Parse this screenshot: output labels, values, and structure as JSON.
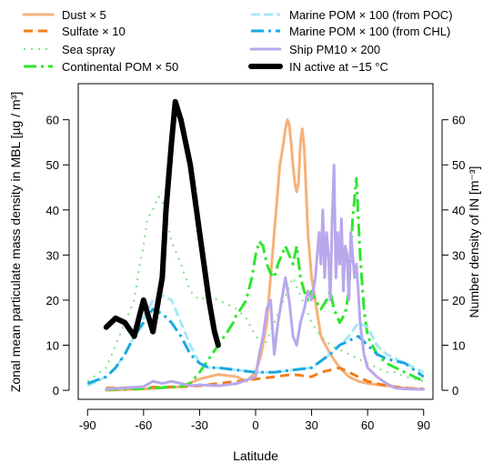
{
  "chart_data": {
    "type": "line",
    "xlabel": "Latitude",
    "ylabel_left": "Zonal mean particulate mass density in MBL [µg / m³]",
    "ylabel_right": "Number density of IN [m⁻³]",
    "xlim": [
      -95,
      95
    ],
    "ylim": [
      -2,
      68
    ],
    "x_ticks": [
      -90,
      -60,
      -30,
      0,
      30,
      60,
      90
    ],
    "y_ticks_left": [
      0,
      10,
      20,
      30,
      40,
      50,
      60
    ],
    "y_ticks_right": [
      0,
      10,
      20,
      30,
      40,
      50,
      60
    ],
    "legend_position": "top",
    "series": [
      {
        "name": "Dust × 5",
        "color": "#f5b27a",
        "dash": "solid",
        "width": 3,
        "points": [
          [
            -80,
            0
          ],
          [
            -60,
            0.3
          ],
          [
            -40,
            0.8
          ],
          [
            -30,
            2.5
          ],
          [
            -20,
            3.5
          ],
          [
            -10,
            3
          ],
          [
            -5,
            2
          ],
          [
            0,
            4
          ],
          [
            3,
            8
          ],
          [
            6,
            15
          ],
          [
            9,
            30
          ],
          [
            11,
            40
          ],
          [
            13,
            50
          ],
          [
            15,
            55
          ],
          [
            16,
            58
          ],
          [
            17,
            60
          ],
          [
            18,
            59
          ],
          [
            19,
            55
          ],
          [
            20,
            50
          ],
          [
            21,
            46
          ],
          [
            22,
            44
          ],
          [
            23,
            46
          ],
          [
            24,
            55
          ],
          [
            25,
            58
          ],
          [
            26,
            54
          ],
          [
            27,
            45
          ],
          [
            28,
            35
          ],
          [
            30,
            25
          ],
          [
            35,
            12
          ],
          [
            40,
            8
          ],
          [
            45,
            5
          ],
          [
            50,
            3
          ],
          [
            55,
            2
          ],
          [
            60,
            1.5
          ],
          [
            70,
            1
          ],
          [
            80,
            0.5
          ],
          [
            90,
            0.2
          ]
        ]
      },
      {
        "name": "Sulfate × 10",
        "color": "#f07c1a",
        "dash": "10,6",
        "width": 3,
        "points": [
          [
            -80,
            0.5
          ],
          [
            -60,
            0.6
          ],
          [
            -40,
            0.8
          ],
          [
            -30,
            1
          ],
          [
            -20,
            1.5
          ],
          [
            -10,
            2
          ],
          [
            0,
            2.5
          ],
          [
            10,
            3
          ],
          [
            20,
            3.5
          ],
          [
            30,
            3
          ],
          [
            35,
            4
          ],
          [
            40,
            4.5
          ],
          [
            45,
            5
          ],
          [
            50,
            4
          ],
          [
            55,
            3
          ],
          [
            60,
            2
          ],
          [
            70,
            1
          ],
          [
            80,
            0.5
          ],
          [
            90,
            0.3
          ]
        ]
      },
      {
        "name": "Sea spray",
        "color": "#7fe07f",
        "dash": "2,6",
        "width": 2,
        "points": [
          [
            -90,
            2
          ],
          [
            -80,
            5
          ],
          [
            -75,
            10
          ],
          [
            -70,
            15
          ],
          [
            -65,
            20
          ],
          [
            -62,
            28
          ],
          [
            -60,
            32
          ],
          [
            -58,
            38
          ],
          [
            -55,
            40
          ],
          [
            -52,
            43
          ],
          [
            -50,
            42
          ],
          [
            -48,
            38
          ],
          [
            -45,
            33
          ],
          [
            -40,
            28
          ],
          [
            -35,
            22
          ],
          [
            -30,
            20
          ],
          [
            -25,
            21
          ],
          [
            -20,
            20
          ],
          [
            -15,
            19
          ],
          [
            -10,
            18
          ],
          [
            -5,
            16
          ],
          [
            0,
            12
          ],
          [
            5,
            10
          ],
          [
            10,
            15
          ],
          [
            15,
            20
          ],
          [
            20,
            25
          ],
          [
            25,
            20
          ],
          [
            30,
            15
          ],
          [
            35,
            12
          ],
          [
            40,
            10
          ],
          [
            45,
            9
          ],
          [
            50,
            8
          ],
          [
            55,
            7
          ],
          [
            60,
            6
          ],
          [
            65,
            5
          ],
          [
            70,
            4
          ],
          [
            75,
            4
          ],
          [
            80,
            3
          ],
          [
            85,
            2.5
          ],
          [
            90,
            2
          ]
        ]
      },
      {
        "name": "Continental POM × 50",
        "color": "#2ee62e",
        "dash": "14,5,3,5",
        "width": 3,
        "points": [
          [
            -80,
            0.2
          ],
          [
            -60,
            0.4
          ],
          [
            -40,
            0.8
          ],
          [
            -35,
            1.5
          ],
          [
            -30,
            4
          ],
          [
            -25,
            7
          ],
          [
            -20,
            10
          ],
          [
            -15,
            13
          ],
          [
            -12,
            15
          ],
          [
            -10,
            17
          ],
          [
            -8,
            18
          ],
          [
            -5,
            20
          ],
          [
            -2,
            25
          ],
          [
            0,
            30
          ],
          [
            2,
            33
          ],
          [
            4,
            32
          ],
          [
            6,
            28
          ],
          [
            8,
            26
          ],
          [
            10,
            25
          ],
          [
            12,
            28
          ],
          [
            14,
            30
          ],
          [
            16,
            32
          ],
          [
            18,
            30
          ],
          [
            20,
            28
          ],
          [
            22,
            32
          ],
          [
            24,
            25
          ],
          [
            26,
            22
          ],
          [
            28,
            20
          ],
          [
            30,
            22
          ],
          [
            32,
            20
          ],
          [
            35,
            18
          ],
          [
            38,
            20
          ],
          [
            40,
            22
          ],
          [
            42,
            18
          ],
          [
            45,
            15
          ],
          [
            48,
            17
          ],
          [
            50,
            22
          ],
          [
            52,
            38
          ],
          [
            54,
            47
          ],
          [
            56,
            30
          ],
          [
            58,
            18
          ],
          [
            60,
            12
          ],
          [
            65,
            8
          ],
          [
            70,
            6
          ],
          [
            75,
            5
          ],
          [
            80,
            4
          ],
          [
            85,
            3
          ],
          [
            90,
            2
          ]
        ]
      },
      {
        "name": "Marine POM × 100 (from POC)",
        "color": "#a8e8f5",
        "dash": "10,4",
        "width": 3,
        "points": [
          [
            -90,
            1
          ],
          [
            -80,
            3
          ],
          [
            -75,
            5
          ],
          [
            -70,
            8
          ],
          [
            -65,
            12
          ],
          [
            -60,
            16
          ],
          [
            -55,
            20
          ],
          [
            -50,
            21
          ],
          [
            -45,
            20
          ],
          [
            -40,
            15
          ],
          [
            -35,
            10
          ],
          [
            -30,
            6
          ],
          [
            -25,
            5
          ],
          [
            -20,
            5
          ],
          [
            -10,
            4.5
          ],
          [
            0,
            4
          ],
          [
            10,
            4
          ],
          [
            20,
            4.5
          ],
          [
            30,
            5
          ],
          [
            40,
            8
          ],
          [
            45,
            10
          ],
          [
            50,
            12
          ],
          [
            55,
            15
          ],
          [
            60,
            14
          ],
          [
            65,
            10
          ],
          [
            70,
            8
          ],
          [
            80,
            6
          ],
          [
            90,
            4
          ]
        ]
      },
      {
        "name": "Marine POM × 100 (from CHL)",
        "color": "#1aa8e0",
        "dash": "14,5,3,5",
        "width": 3,
        "points": [
          [
            -90,
            1.5
          ],
          [
            -80,
            3
          ],
          [
            -75,
            5
          ],
          [
            -70,
            8
          ],
          [
            -65,
            12
          ],
          [
            -60,
            15
          ],
          [
            -55,
            18
          ],
          [
            -50,
            17
          ],
          [
            -45,
            15
          ],
          [
            -40,
            12
          ],
          [
            -35,
            8
          ],
          [
            -30,
            6
          ],
          [
            -25,
            5
          ],
          [
            -20,
            5
          ],
          [
            -10,
            4.5
          ],
          [
            0,
            4
          ],
          [
            10,
            4
          ],
          [
            20,
            4.5
          ],
          [
            30,
            5
          ],
          [
            40,
            8
          ],
          [
            45,
            10
          ],
          [
            50,
            11
          ],
          [
            55,
            12
          ],
          [
            60,
            10
          ],
          [
            65,
            8
          ],
          [
            70,
            7
          ],
          [
            80,
            6
          ],
          [
            90,
            3
          ]
        ]
      },
      {
        "name": "Ship PM10 × 200",
        "color": "#b8a8ec",
        "dash": "solid",
        "width": 3,
        "points": [
          [
            -80,
            0.3
          ],
          [
            -60,
            0.8
          ],
          [
            -55,
            2
          ],
          [
            -50,
            1.5
          ],
          [
            -45,
            2
          ],
          [
            -40,
            1.5
          ],
          [
            -35,
            1
          ],
          [
            -30,
            1.2
          ],
          [
            -20,
            1
          ],
          [
            -10,
            1.5
          ],
          [
            0,
            3
          ],
          [
            2,
            8
          ],
          [
            4,
            12
          ],
          [
            6,
            18
          ],
          [
            8,
            20
          ],
          [
            10,
            8
          ],
          [
            12,
            15
          ],
          [
            14,
            20
          ],
          [
            16,
            25
          ],
          [
            18,
            20
          ],
          [
            20,
            12
          ],
          [
            22,
            10
          ],
          [
            24,
            15
          ],
          [
            26,
            18
          ],
          [
            28,
            22
          ],
          [
            30,
            20
          ],
          [
            32,
            25
          ],
          [
            33,
            30
          ],
          [
            34,
            35
          ],
          [
            35,
            28
          ],
          [
            36,
            40
          ],
          [
            37,
            25
          ],
          [
            38,
            35
          ],
          [
            39,
            30
          ],
          [
            40,
            20
          ],
          [
            41,
            38
          ],
          [
            42,
            50
          ],
          [
            43,
            25
          ],
          [
            44,
            35
          ],
          [
            45,
            28
          ],
          [
            46,
            38
          ],
          [
            47,
            22
          ],
          [
            48,
            32
          ],
          [
            49,
            30
          ],
          [
            50,
            20
          ],
          [
            51,
            35
          ],
          [
            52,
            30
          ],
          [
            53,
            25
          ],
          [
            54,
            28
          ],
          [
            55,
            22
          ],
          [
            56,
            15
          ],
          [
            58,
            8
          ],
          [
            60,
            5
          ],
          [
            65,
            3
          ],
          [
            70,
            1.5
          ],
          [
            75,
            0.5
          ],
          [
            80,
            0.3
          ],
          [
            90,
            0.2
          ]
        ]
      },
      {
        "name": "IN active at −15 °C",
        "color": "#000000",
        "dash": "solid",
        "width": 6,
        "points": [
          [
            -80,
            14
          ],
          [
            -75,
            16
          ],
          [
            -70,
            15
          ],
          [
            -65,
            12
          ],
          [
            -60,
            20
          ],
          [
            -55,
            13
          ],
          [
            -50,
            25
          ],
          [
            -48,
            40
          ],
          [
            -45,
            55
          ],
          [
            -43,
            64
          ],
          [
            -40,
            60
          ],
          [
            -35,
            50
          ],
          [
            -30,
            35
          ],
          [
            -25,
            20
          ],
          [
            -22,
            13
          ],
          [
            -20,
            10
          ]
        ]
      }
    ]
  }
}
